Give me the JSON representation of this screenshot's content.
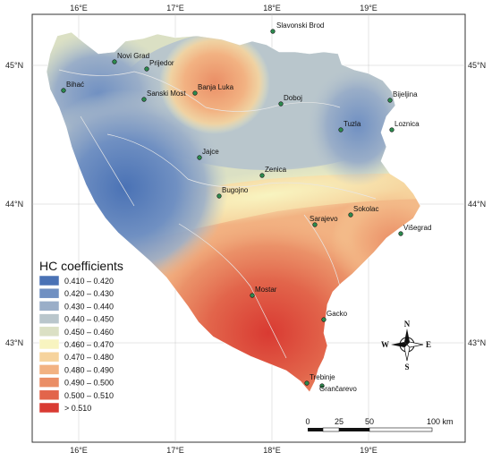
{
  "axes": {
    "top_lon": [
      "16°E",
      "17°E",
      "18°E",
      "19°E"
    ],
    "bottom_lon": [
      "16°E",
      "17°E",
      "18°E",
      "19°E"
    ],
    "left_lat": [
      "45°N",
      "44°N",
      "43°N"
    ],
    "right_lat": [
      "45°N",
      "44°N",
      "43°N"
    ]
  },
  "cities": [
    {
      "name": "Slavonski Brod"
    },
    {
      "name": "Novi Grad"
    },
    {
      "name": "Prijedor"
    },
    {
      "name": "Bihać"
    },
    {
      "name": "Sanski Most"
    },
    {
      "name": "Banja Luka"
    },
    {
      "name": "Doboj"
    },
    {
      "name": "Bijeljina"
    },
    {
      "name": "Tuzla"
    },
    {
      "name": "Loznica"
    },
    {
      "name": "Jajce"
    },
    {
      "name": "Zenica"
    },
    {
      "name": "Bugojno"
    },
    {
      "name": "Sokolac"
    },
    {
      "name": "Sarajevo"
    },
    {
      "name": "Višegrad"
    },
    {
      "name": "Mostar"
    },
    {
      "name": "Gacko"
    },
    {
      "name": "Trebinje"
    },
    {
      "name": "Grančarevo"
    }
  ],
  "legend": {
    "title": "HC coefficients",
    "items": [
      {
        "label": "0.410 – 0.420",
        "color": "#4a72b5"
      },
      {
        "label": "0.420 – 0.430",
        "color": "#7090c2"
      },
      {
        "label": "0.430 – 0.440",
        "color": "#9aaec8"
      },
      {
        "label": "0.440 – 0.450",
        "color": "#b9c6cc"
      },
      {
        "label": "0.450 – 0.460",
        "color": "#dbe0c4"
      },
      {
        "label": "0.460 – 0.470",
        "color": "#f8f4c0"
      },
      {
        "label": "0.470 – 0.480",
        "color": "#f6d39d"
      },
      {
        "label": "0.480 – 0.490",
        "color": "#f2b282"
      },
      {
        "label": "0.490 – 0.500",
        "color": "#ea8e66"
      },
      {
        "label": "0.500 – 0.510",
        "color": "#e2654b"
      },
      {
        "label": "> 0.510",
        "color": "#d93a32"
      }
    ]
  },
  "compass": {
    "n": "N",
    "s": "S",
    "e": "E",
    "w": "W"
  },
  "scale_bar": {
    "ticks": [
      "0",
      "25",
      "50",
      "100 km"
    ]
  }
}
